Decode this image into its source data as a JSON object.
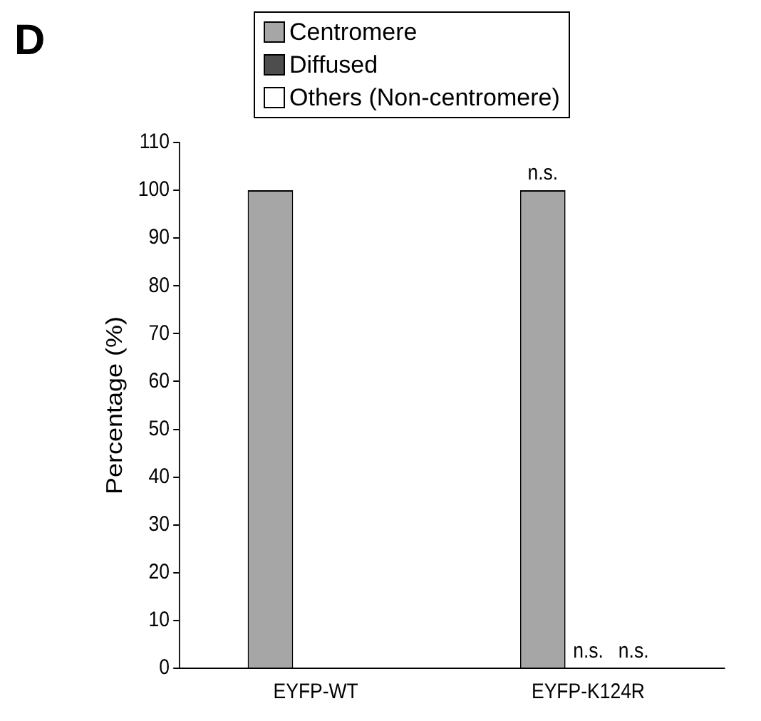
{
  "chart_data": {
    "type": "bar",
    "title": "D",
    "ylabel": "Percentage (%)",
    "categories": [
      "EYFP-WT",
      "EYFP-K124R"
    ],
    "series": [
      {
        "name": "Centromere",
        "color": "#a6a6a6",
        "values": [
          100,
          100
        ]
      },
      {
        "name": "Diffused",
        "color": "#4d4d4d",
        "values": [
          0,
          0
        ]
      },
      {
        "name": "Others (Non-centromere)",
        "color": "#ffffff",
        "values": [
          0,
          0
        ]
      }
    ],
    "ylim": [
      0,
      110
    ],
    "yticks": [
      0,
      10,
      20,
      30,
      40,
      50,
      60,
      70,
      80,
      90,
      100,
      110
    ],
    "grid": false,
    "legend": "top",
    "annotations": [
      "n.s.",
      "n.s.",
      "n.s."
    ]
  }
}
